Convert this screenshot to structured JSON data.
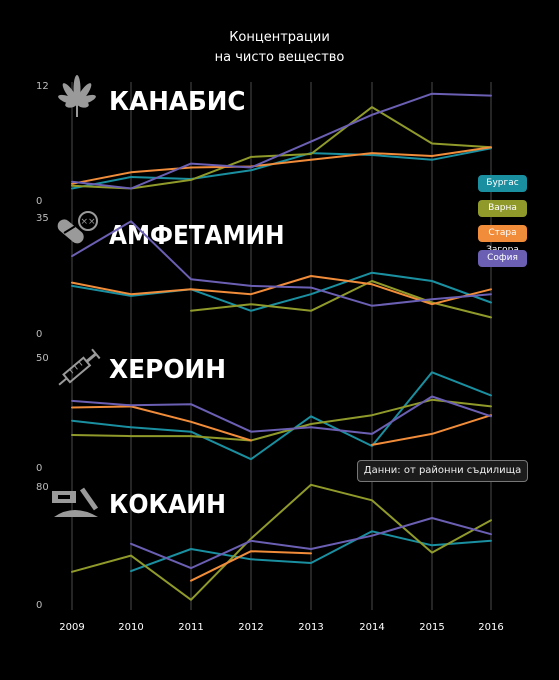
{
  "title_line1": "Концентрации",
  "title_line2": "на чисто вещество",
  "source_note": "Данни: от районни съдилища",
  "colors": {
    "Бургас": "#1a8fa0",
    "Варна": "#8f9a2a",
    "Стара Загора": "#f08c3a",
    "София": "#6a5fb3"
  },
  "icons": [
    "cannabis-leaf-icon",
    "pill-icon",
    "syringe-icon",
    "razor-blade-icon"
  ],
  "chart_data": [
    {
      "type": "line",
      "title": "КАНАБИС",
      "ylim": [
        0,
        12
      ],
      "x": [
        2009,
        2010,
        2011,
        2012,
        2013,
        2014,
        2015,
        2016
      ],
      "series": [
        {
          "name": "Бургас",
          "values": [
            1.3,
            2.5,
            2.3,
            3.2,
            5.0,
            4.8,
            4.3,
            5.5
          ]
        },
        {
          "name": "Варна",
          "values": [
            1.6,
            1.3,
            2.2,
            4.6,
            4.9,
            9.8,
            6.0,
            5.6
          ]
        },
        {
          "name": "Стара Загора",
          "values": [
            1.8,
            3.0,
            3.5,
            3.6,
            4.3,
            5.0,
            4.7,
            5.6
          ]
        },
        {
          "name": "София",
          "values": [
            2.0,
            1.3,
            3.9,
            3.5,
            6.2,
            9.0,
            11.2,
            11.0
          ]
        }
      ]
    },
    {
      "type": "line",
      "title": "АМФЕТАМИН",
      "ylim": [
        0,
        35
      ],
      "x": [
        2009,
        2010,
        2011,
        2012,
        2013,
        2014,
        2015,
        2016
      ],
      "series": [
        {
          "name": "Бургас",
          "values": [
            14.5,
            11.5,
            13.5,
            7.0,
            12.0,
            18.5,
            16.0,
            9.5
          ]
        },
        {
          "name": "Варна",
          "values": [
            null,
            null,
            7.0,
            9.0,
            7.0,
            16.0,
            9.5,
            5.0
          ]
        },
        {
          "name": "Стара Загора",
          "values": [
            15.5,
            12.0,
            13.5,
            12.0,
            17.5,
            15.0,
            9.0,
            13.5
          ]
        },
        {
          "name": "София",
          "values": [
            23.5,
            34.0,
            16.5,
            14.5,
            14.0,
            8.5,
            10.5,
            12.0
          ]
        }
      ]
    },
    {
      "type": "line",
      "title": "ХЕРОИН",
      "ylim": [
        0,
        50
      ],
      "x": [
        2009,
        2010,
        2011,
        2012,
        2013,
        2014,
        2015,
        2016
      ],
      "series": [
        {
          "name": "Бургас",
          "values": [
            21.5,
            18.5,
            16.5,
            4.0,
            23.5,
            10.0,
            43.5,
            33.0
          ]
        },
        {
          "name": "Варна",
          "values": [
            15.0,
            14.5,
            14.5,
            12.5,
            20.0,
            24.0,
            31.0,
            28.0
          ]
        },
        {
          "name": "Стара Загора",
          "values": [
            27.5,
            28.0,
            21.0,
            12.5,
            null,
            10.5,
            15.5,
            24.0
          ]
        },
        {
          "name": "София",
          "values": [
            30.5,
            28.5,
            29.0,
            16.5,
            18.5,
            15.5,
            32.5,
            23.5
          ]
        }
      ]
    },
    {
      "type": "line",
      "title": "КОКАИН",
      "ylim": [
        0,
        80
      ],
      "x": [
        2009,
        2010,
        2011,
        2012,
        2013,
        2014,
        2015,
        2016
      ],
      "series": [
        {
          "name": "Бургас",
          "values": [
            null,
            23.0,
            38.0,
            31.0,
            28.5,
            50.0,
            40.5,
            43.5
          ]
        },
        {
          "name": "Варна",
          "values": [
            22.5,
            33.5,
            3.5,
            45.0,
            81.5,
            71.0,
            35.5,
            57.5
          ]
        },
        {
          "name": "Стара Загора",
          "values": [
            null,
            null,
            16.5,
            36.5,
            35.0,
            null,
            null,
            null
          ]
        },
        {
          "name": "София",
          "values": [
            null,
            41.5,
            25.0,
            43.5,
            38.0,
            47.0,
            59.0,
            48.0
          ]
        }
      ]
    }
  ],
  "x_tick_labels": [
    "2009",
    "2010",
    "2011",
    "2012",
    "2013",
    "2014",
    "2015",
    "2016"
  ]
}
